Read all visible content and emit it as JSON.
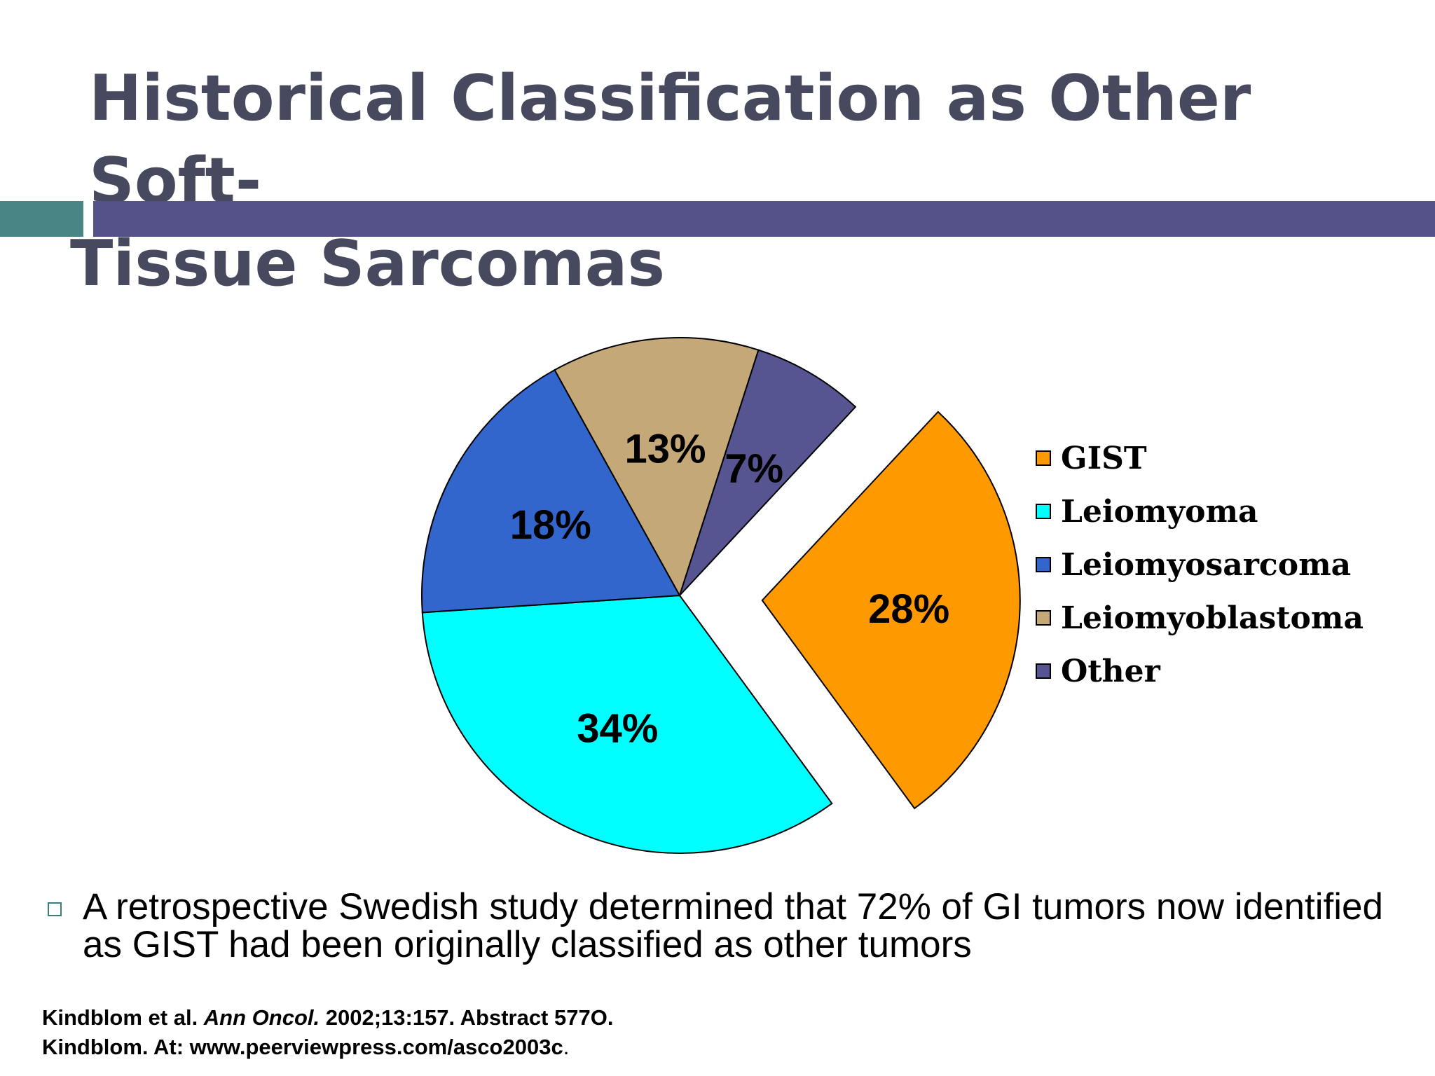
{
  "slide": {
    "title_line1": "Historical Classification as Other Soft-",
    "title_line2": "Tissue Sarcomas"
  },
  "chart_data": {
    "type": "pie",
    "categories": [
      "GIST",
      "Leiomyoma",
      "Leiomyosarcoma",
      "Leiomyoblastoma",
      "Other"
    ],
    "values": [
      28,
      34,
      18,
      13,
      7
    ],
    "labels": [
      "28%",
      "34%",
      "18%",
      "13%",
      "7%"
    ],
    "colors": [
      "#ff9900",
      "#00ffff",
      "#3366cc",
      "#c4a878",
      "#575591"
    ],
    "exploded": [
      "GIST"
    ],
    "legend_position": "right",
    "start_angle_deg": 43,
    "direction": "clockwise"
  },
  "bullet": {
    "text": "A retrospective Swedish study determined that 72% of GI tumors now identified as GIST had been originally classified as other tumors"
  },
  "references": {
    "ref1_prefix": "Kindblom et al. ",
    "ref1_journal": "Ann Oncol.",
    "ref1_suffix": " 2002;13:157. Abstract 577O.",
    "ref2_text": "Kindblom. At: www.peerviewpress.com/asco2003c",
    "ref2_dot": "."
  }
}
